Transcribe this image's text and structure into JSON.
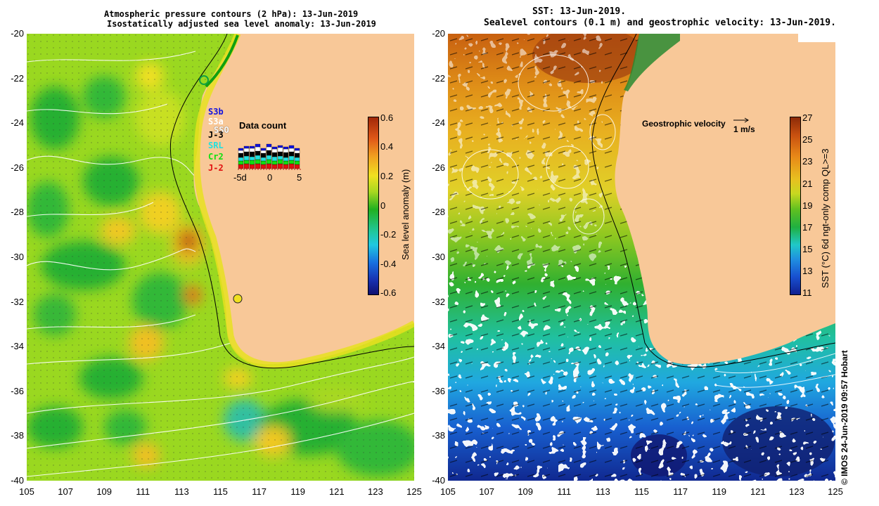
{
  "left_panel": {
    "title_line1": "Atmospheric pressure contours (2 hPa): 13-Jun-2019",
    "title_line2": "Isostatically adjusted sea level anomaly: 13-Jun-2019",
    "colorbar_label": "Sea level anomaly (m)",
    "colorbar_ticks": [
      "0.6",
      "0.4",
      "0.2",
      "0",
      "-0.2",
      "-0.4",
      "-0.6"
    ],
    "colorbar_colors": [
      "#a02808",
      "#f08020",
      "#f0e020",
      "#20b020",
      "#20c8c8",
      "#1840c0",
      "#101070"
    ],
    "satellites": [
      {
        "name": "S3b",
        "color": "#1010e0"
      },
      {
        "name": "S3a",
        "color": "#ffffff"
      },
      {
        "name": "SSO",
        "color": "#ffffff"
      },
      {
        "name": "J-3",
        "color": "#000000"
      },
      {
        "name": "SRL",
        "color": "#20e0e0"
      },
      {
        "name": "Cr2",
        "color": "#10e010"
      },
      {
        "name": "J-2",
        "color": "#e01010"
      }
    ],
    "data_count_title": "Data count",
    "data_count_axis": [
      "-5d",
      "0",
      "5"
    ]
  },
  "right_panel": {
    "title_line1": "SST: 13-Jun-2019.",
    "title_line2": "Sealevel contours (0.1 m) and geostrophic velocity: 13-Jun-2019.",
    "colorbar_label": "SST (°C) 6d ngt-only comp QL>=3",
    "colorbar_ticks": [
      "27",
      "25",
      "23",
      "21",
      "19",
      "17",
      "15",
      "13",
      "11"
    ],
    "colorbar_colors": [
      "#8c2a08",
      "#d06010",
      "#e8a020",
      "#e0d020",
      "#70c020",
      "#20b040",
      "#20c8c8",
      "#2070e0",
      "#102090"
    ],
    "velocity_label": "Geostrophic velocity",
    "velocity_scale": "1 m/s"
  },
  "axes": {
    "y_ticks": [
      "-20",
      "-22",
      "-24",
      "-26",
      "-28",
      "-30",
      "-32",
      "-34",
      "-36",
      "-38",
      "-40"
    ],
    "x_ticks": [
      "105",
      "107",
      "109",
      "111",
      "113",
      "115",
      "117",
      "119",
      "121",
      "123",
      "125"
    ]
  },
  "credit": "© IMOS 24-Jun-2019 09:57 Hobart"
}
